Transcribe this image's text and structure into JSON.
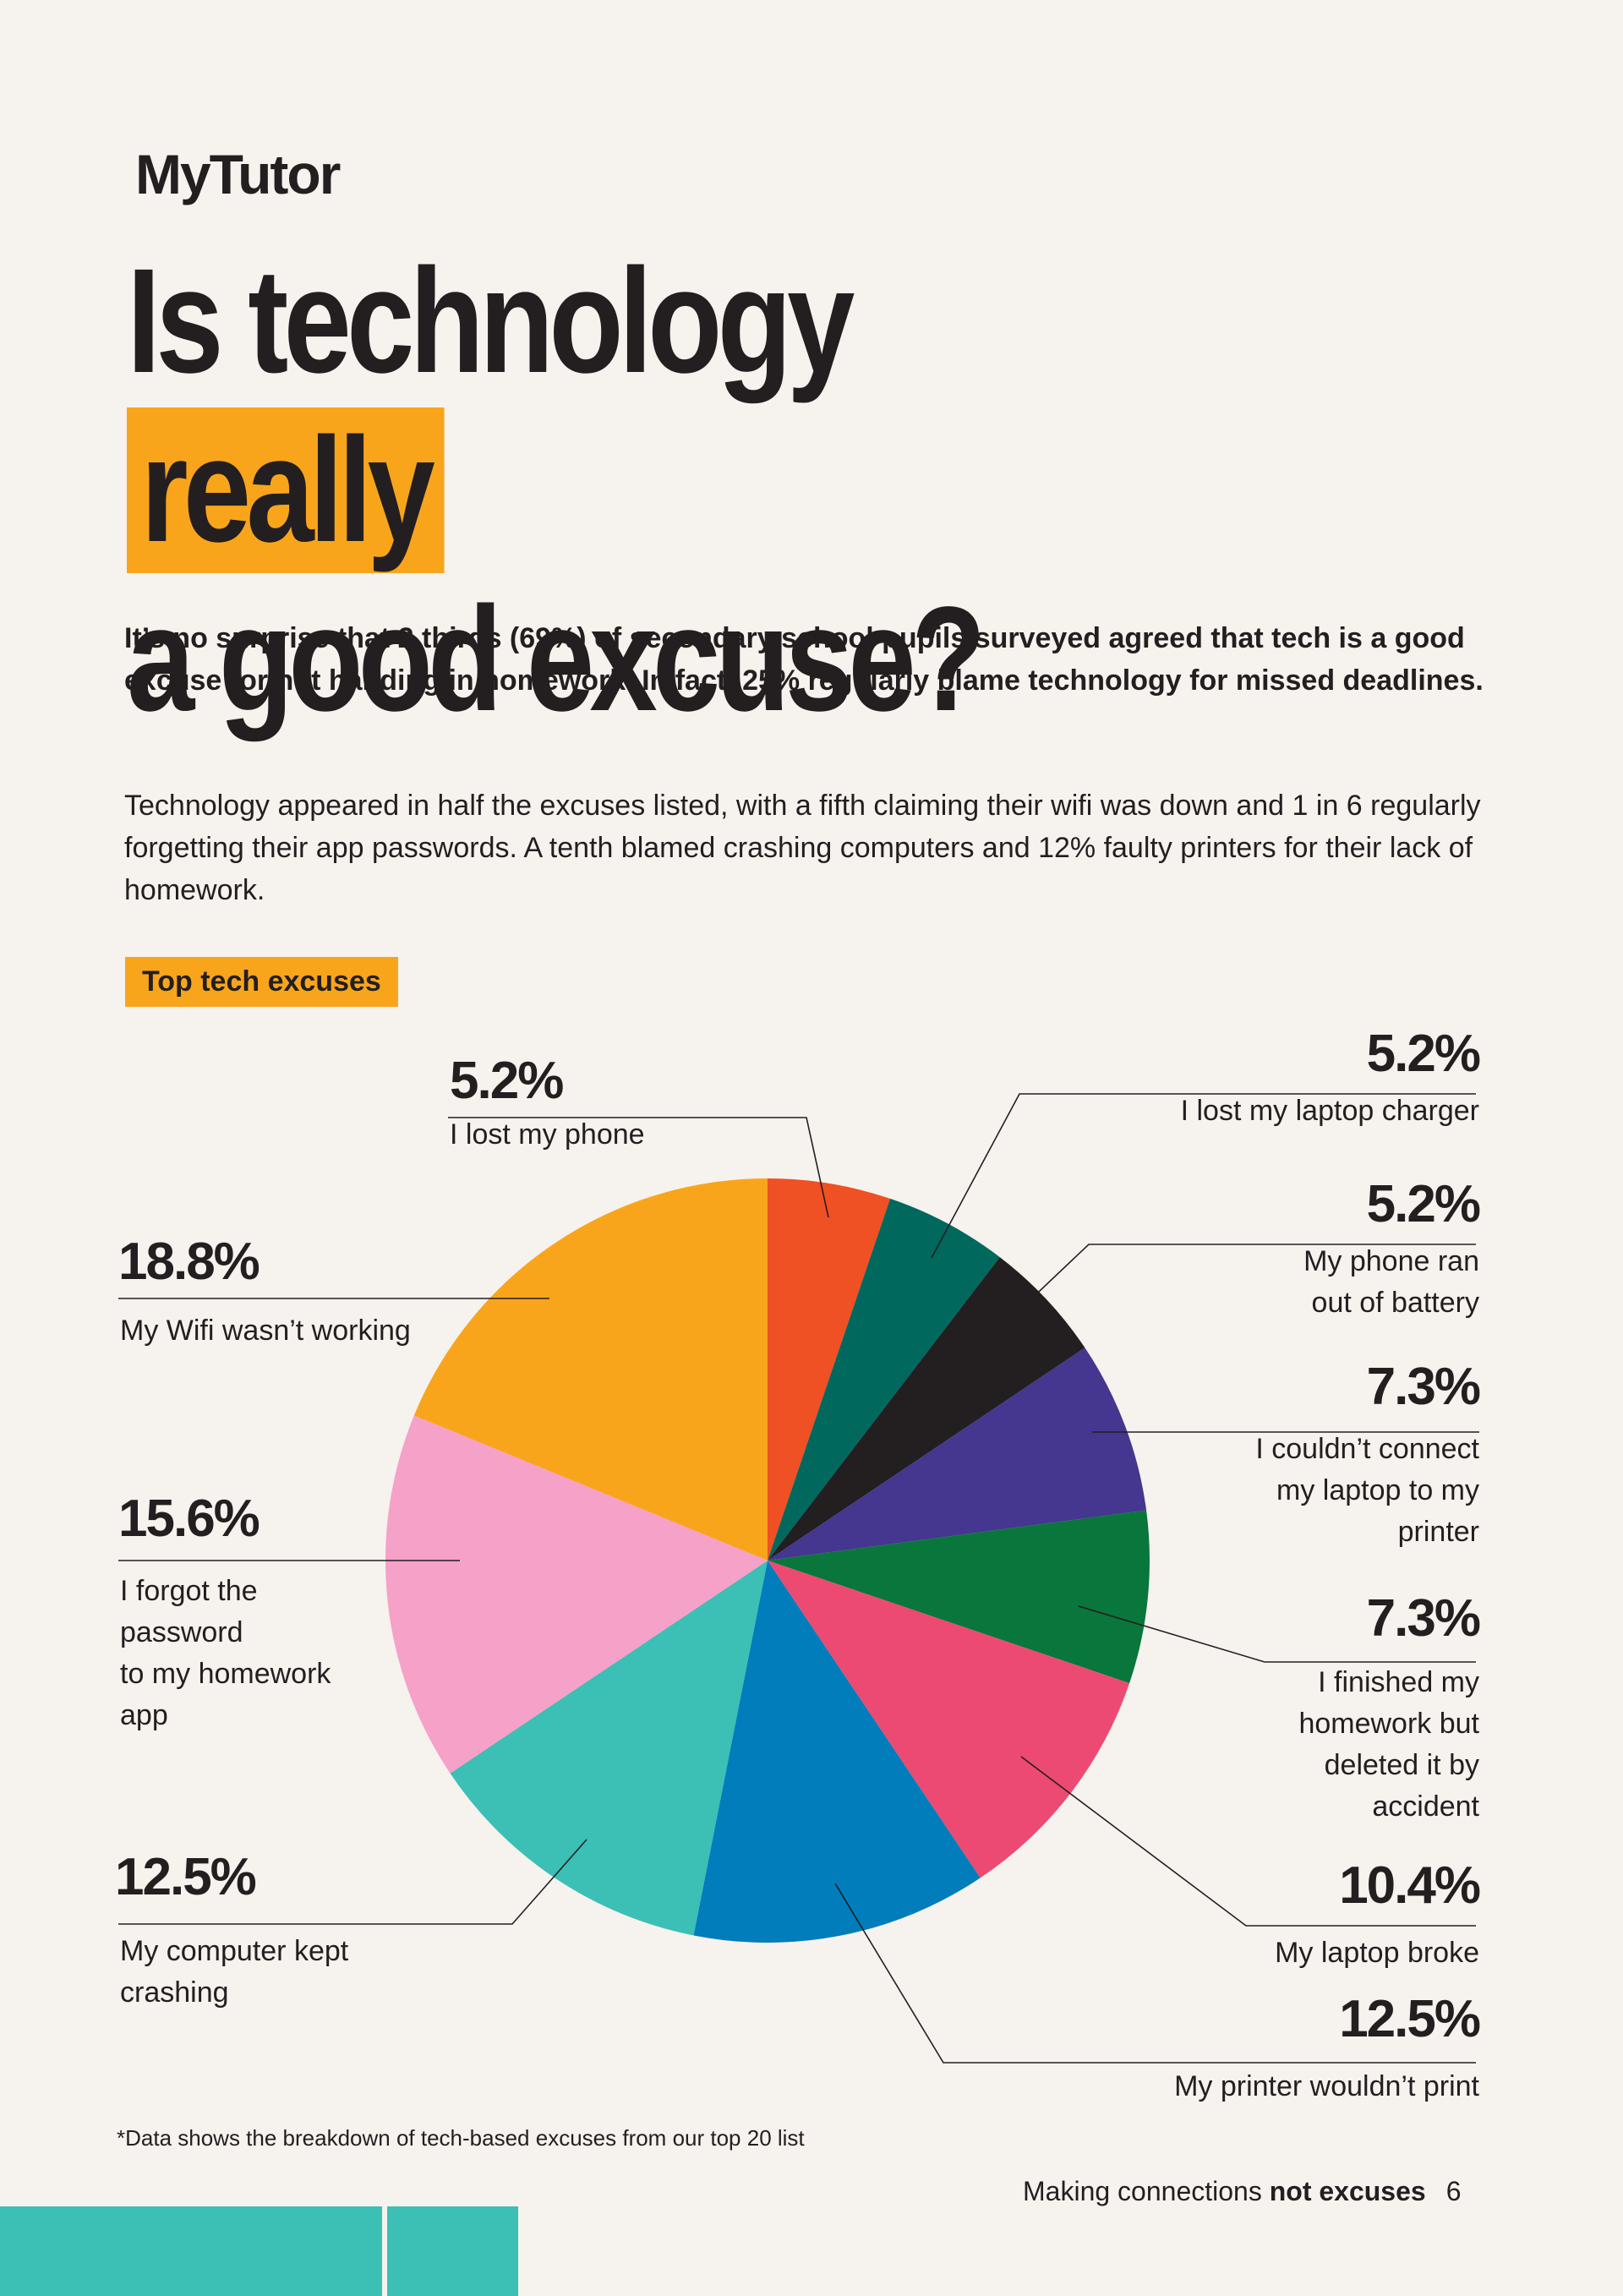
{
  "brand": {
    "logo": "MyTutor"
  },
  "headline": {
    "line1a": "Is technology ",
    "line1b": "really",
    "line2": "a good excuse?"
  },
  "intro": "It’s no surprise that 2 thirds (69%) of secondary school pupils surveyed agreed that tech is a good excuse for not handing in homework. In fact, 25% regularly blame technology for missed deadlines.",
  "body": "Technology appeared in half the excuses listed, with a fifth claiming their wifi was down and 1 in 6 regularly forgetting their app passwords. A tenth blamed crashing computers and 12% faulty printers for their lack of homework.",
  "section_tag": "Top tech excuses",
  "chart_data": {
    "type": "pie",
    "title": "Top tech excuses",
    "slices": [
      {
        "label": "I lost my phone",
        "value_text": "5.2%",
        "value": 5.2,
        "color": "#ef5024"
      },
      {
        "label": "I lost my laptop charger",
        "value_text": "5.2%",
        "value": 5.2,
        "color": "#00685c"
      },
      {
        "label": "My phone ran out of battery",
        "value_text": "5.2%",
        "value": 5.2,
        "color": "#231f20"
      },
      {
        "label": "I couldn’t connect my laptop to my printer",
        "value_text": "7.3%",
        "value": 7.3,
        "color": "#45368f"
      },
      {
        "label": "I finished my homework but deleted it by accident",
        "value_text": "7.3%",
        "value": 7.3,
        "color": "#09763c"
      },
      {
        "label": "My laptop broke",
        "value_text": "10.4%",
        "value": 10.4,
        "color": "#ec4a72"
      },
      {
        "label": "My printer wouldn’t print",
        "value_text": "12.5%",
        "value": 12.5,
        "color": "#017dbb"
      },
      {
        "label": "My computer kept crashing",
        "value_text": "12.5%",
        "value": 12.5,
        "color": "#3cbfb4"
      },
      {
        "label": "I forgot the password to my homework app",
        "value_text": "15.6%",
        "value": 15.6,
        "color": "#f5a1c8"
      },
      {
        "label": "My Wifi wasn’t working",
        "value_text": "18.8%",
        "value": 18.8,
        "color": "#f9a51c"
      }
    ],
    "label_lines": {
      "s3": [
        "My phone ran",
        "out of battery"
      ],
      "s4": [
        "I couldn’t connect",
        "my laptop to my",
        "printer"
      ],
      "s5": [
        "I finished my",
        "homework but",
        "deleted it by",
        "accident"
      ],
      "s8": [
        "I forgot the",
        "password",
        "to my homework",
        "app"
      ],
      "s7": [
        "My computer kept",
        "crashing"
      ]
    }
  },
  "footnote": "*Data shows the breakdown of tech-based excuses from our top 20 list",
  "footer": {
    "text": "Making connections ",
    "bold": "not excuses",
    "page": "6"
  }
}
